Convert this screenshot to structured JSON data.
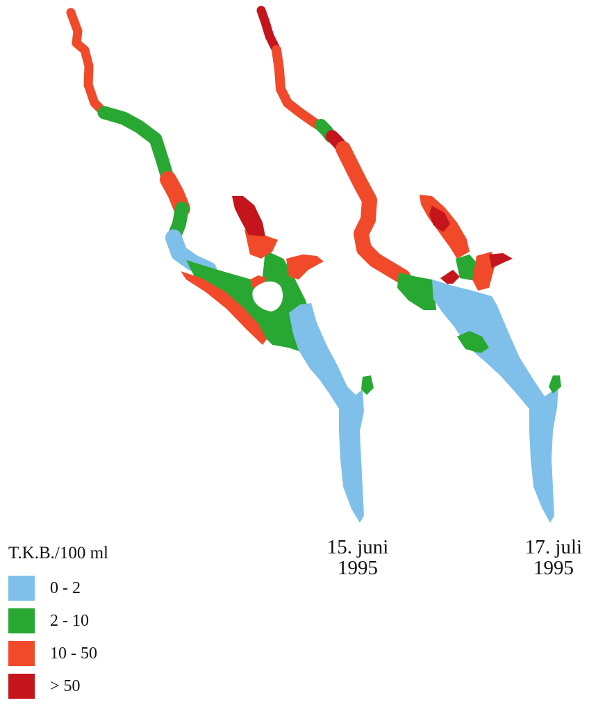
{
  "legend": {
    "title": "T.K.B./100 ml",
    "classes": [
      {
        "label": "0 - 2",
        "color": "#7fc0ea"
      },
      {
        "label": "2 - 10",
        "color": "#28a832"
      },
      {
        "label": "10 - 50",
        "color": "#f04a2a"
      },
      {
        "label": "> 50",
        "color": "#c4141c"
      }
    ]
  },
  "maps": [
    {
      "date_line1": "15. juni",
      "date_line2": "1995"
    },
    {
      "date_line1": "17. juli",
      "date_line2": "1995"
    }
  ]
}
